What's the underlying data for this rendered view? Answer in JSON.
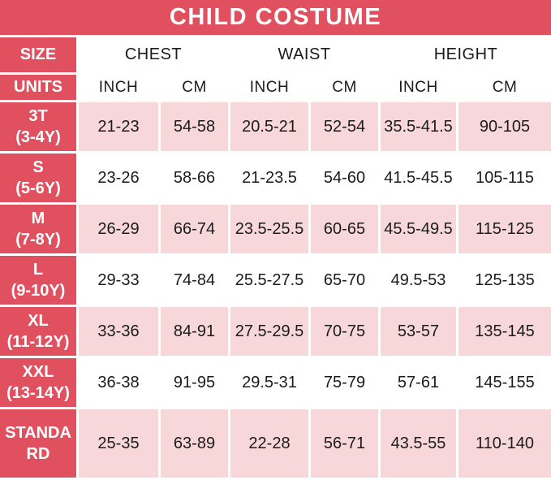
{
  "colors": {
    "header_red": "#e0505f",
    "row_pink": "#f8d7da",
    "text_black": "#1b1b1b",
    "title_text": "#ffffff"
  },
  "chart_data": {
    "type": "table",
    "title": "CHILD COSTUME",
    "corner_headers": {
      "size": "SIZE",
      "units": "UNITS"
    },
    "column_groups": [
      "CHEST",
      "WAIST",
      "HEIGHT"
    ],
    "unit_columns": [
      "INCH",
      "CM",
      "INCH",
      "CM",
      "INCH",
      "CM"
    ],
    "rows": [
      {
        "size": "3T",
        "age": "(3-4Y)",
        "values": [
          "21-23",
          "54-58",
          "20.5-21",
          "52-54",
          "35.5-41.5",
          "90-105"
        ]
      },
      {
        "size": "S",
        "age": "(5-6Y)",
        "values": [
          "23-26",
          "58-66",
          "21-23.5",
          "54-60",
          "41.5-45.5",
          "105-115"
        ]
      },
      {
        "size": "M",
        "age": "(7-8Y)",
        "values": [
          "26-29",
          "66-74",
          "23.5-25.5",
          "60-65",
          "45.5-49.5",
          "115-125"
        ]
      },
      {
        "size": "L",
        "age": "(9-10Y)",
        "values": [
          "29-33",
          "74-84",
          "25.5-27.5",
          "65-70",
          "49.5-53",
          "125-135"
        ]
      },
      {
        "size": "XL",
        "age": "(11-12Y)",
        "values": [
          "33-36",
          "84-91",
          "27.5-29.5",
          "70-75",
          "53-57",
          "135-145"
        ]
      },
      {
        "size": "XXL",
        "age": "(13-14Y)",
        "values": [
          "36-38",
          "91-95",
          "29.5-31",
          "75-79",
          "57-61",
          "145-155"
        ]
      },
      {
        "size": "STANDARD",
        "age": "",
        "values": [
          "25-35",
          "63-89",
          "22-28",
          "56-71",
          "43.5-55",
          "110-140"
        ]
      }
    ]
  }
}
